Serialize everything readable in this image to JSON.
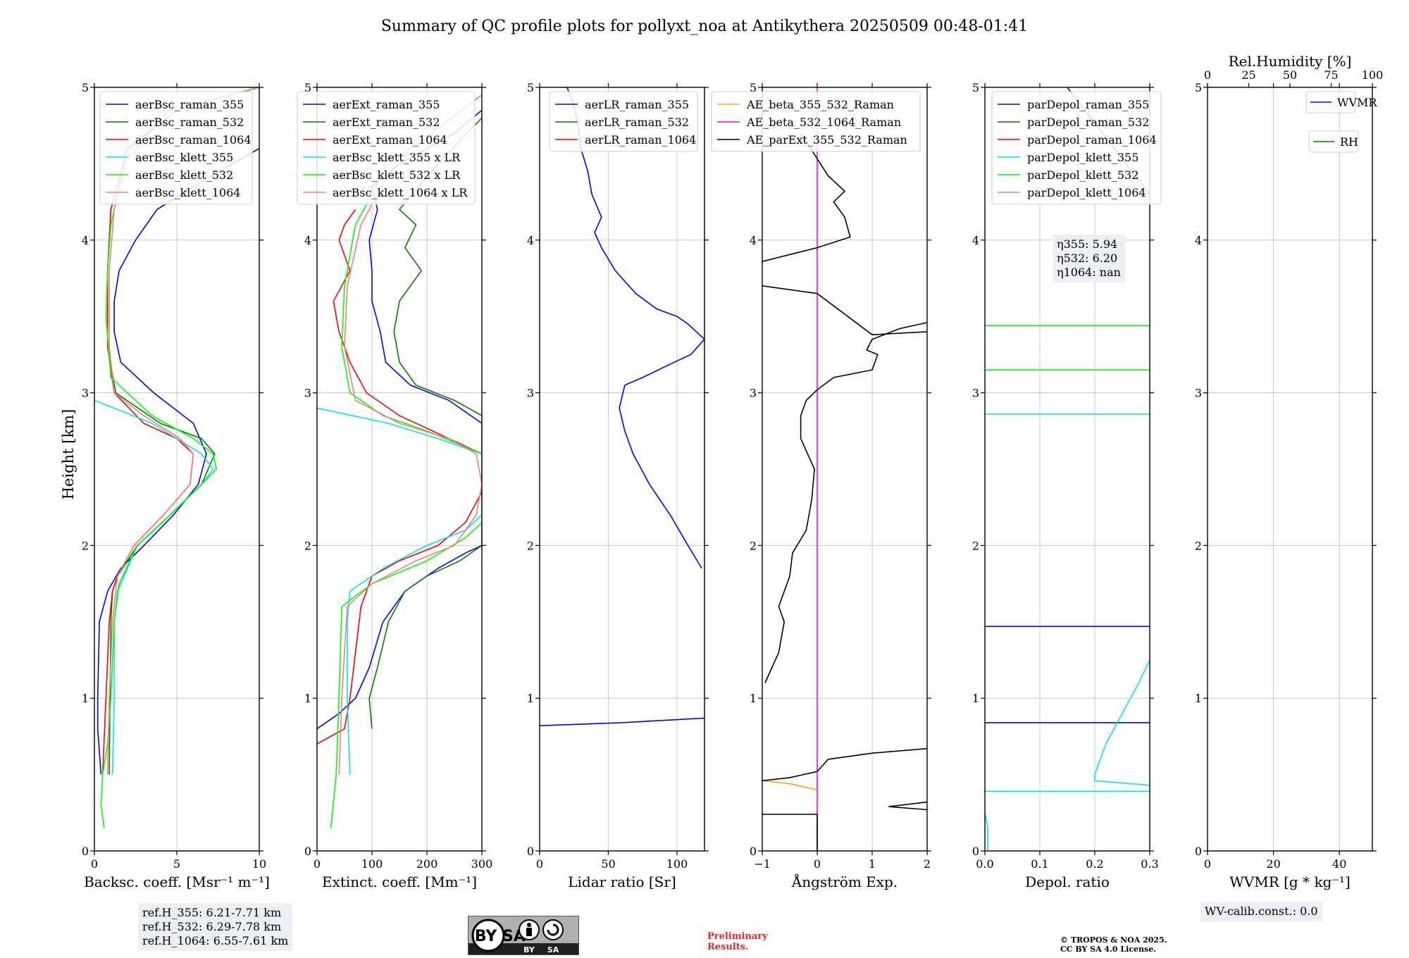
{
  "figure": {
    "title": "Summary of QC profile plots for pollyxt_noa at Antikythera 20250509 00:48-01:41",
    "y_label": "Height [km]",
    "ref_heights": [
      "ref.H_355: 6.21-7.71 km",
      "ref.H_532: 6.29-7.78 km",
      "ref.H_1064: 6.55-7.61 km"
    ],
    "eta": [
      "η355: 5.94",
      "η532: 6.20",
      "η1064: nan"
    ],
    "wv_calib": "WV-calib.const.: 0.0",
    "cc_license_badge": {
      "text": "cc BY SA"
    },
    "preliminary": [
      "Preliminary",
      "Results."
    ],
    "copyright": [
      "© TROPOS & NOA 2025.",
      "CC BY SA 4.0 License."
    ]
  },
  "chart_data": [
    {
      "type": "line",
      "xlabel": "Backsc. coeff. [Msr⁻¹ m⁻¹]",
      "ylabel": "Height [km]",
      "xlim": [
        0,
        10
      ],
      "ylim": [
        0,
        5
      ],
      "xticks": [
        "0",
        "5",
        "10"
      ],
      "yticks": [
        "0",
        "1",
        "2",
        "3",
        "4",
        "5"
      ],
      "legend_position": "top-right",
      "series": [
        {
          "name": "aerBsc_raman_355",
          "color": "#0000ff",
          "x": [
            0.4,
            0.2,
            0.2,
            0.3,
            0.8,
            1.6,
            3.0,
            4.8,
            6.3,
            6.8,
            6.0,
            3.6,
            1.6,
            1.2,
            1.2,
            1.5,
            2.5,
            3.8,
            6.0,
            10.0
          ],
          "y": [
            0.5,
            0.8,
            1.0,
            1.5,
            1.7,
            1.85,
            2.0,
            2.2,
            2.4,
            2.6,
            2.8,
            3.0,
            3.2,
            3.4,
            3.6,
            3.8,
            4.0,
            4.2,
            4.35,
            4.6
          ]
        },
        {
          "name": "aerBsc_raman_532",
          "color": "#008000",
          "x": [
            0.9,
            0.95,
            1.0,
            1.1,
            1.4,
            2.6,
            4.6,
            6.5,
            7.3,
            6.5,
            4.0,
            1.3,
            0.8,
            0.8,
            1.0,
            2.0,
            5.0,
            10.0
          ],
          "y": [
            0.5,
            1.0,
            1.5,
            1.7,
            1.8,
            2.0,
            2.2,
            2.4,
            2.6,
            2.7,
            2.8,
            3.0,
            3.3,
            3.8,
            4.2,
            4.6,
            4.85,
            5.0
          ]
        },
        {
          "name": "aerBsc_raman_1064",
          "color": "#ff0000",
          "x": [
            0.5,
            0.7,
            0.9,
            1.1,
            1.4,
            2.4,
            4.2,
            5.8,
            6.0,
            5.0,
            3.0,
            1.2,
            0.8,
            0.8,
            1.0,
            2.0,
            5.0,
            10.0
          ],
          "y": [
            0.5,
            1.0,
            1.5,
            1.7,
            1.8,
            2.0,
            2.2,
            2.4,
            2.6,
            2.7,
            2.8,
            3.0,
            3.3,
            3.8,
            4.2,
            4.6,
            4.85,
            5.0
          ]
        },
        {
          "name": "aerBsc_klett_355",
          "color": "#00e5e5",
          "x": [
            1.1,
            1.2,
            1.2,
            1.4,
            2.6,
            4.6,
            6.5,
            7.2,
            6.5,
            3.5,
            0.0
          ],
          "y": [
            0.5,
            1.0,
            1.5,
            1.7,
            2.0,
            2.2,
            2.4,
            2.5,
            2.6,
            2.8,
            2.95
          ]
        },
        {
          "name": "aerBsc_klett_532",
          "color": "#00ff00",
          "x": [
            0.6,
            0.4,
            0.5,
            0.8,
            1.0,
            1.2,
            1.5,
            2.6,
            4.6,
            6.5,
            7.4,
            7.2,
            6.0,
            3.5,
            1.0,
            0.7,
            0.8,
            1.0,
            1.8,
            4.5,
            10.0
          ],
          "y": [
            0.15,
            0.3,
            0.5,
            0.7,
            1.0,
            1.5,
            1.75,
            2.0,
            2.2,
            2.4,
            2.5,
            2.6,
            2.7,
            2.85,
            3.1,
            3.5,
            3.8,
            4.1,
            4.5,
            4.85,
            5.0
          ]
        },
        {
          "name": "aerBsc_klett_1064",
          "color": "#f08080",
          "x": [
            0.8,
            0.9,
            1.1,
            1.4,
            2.4,
            4.2,
            5.8,
            6.0,
            5.2,
            3.0,
            1.2,
            0.9,
            0.9,
            1.2,
            2.2,
            5.0,
            10.0
          ],
          "y": [
            0.5,
            1.0,
            1.5,
            1.8,
            2.0,
            2.2,
            2.4,
            2.6,
            2.7,
            2.85,
            3.0,
            3.3,
            3.8,
            4.2,
            4.6,
            4.85,
            5.0
          ]
        }
      ]
    },
    {
      "type": "line",
      "xlabel": "Extinct. coeff. [Mm⁻¹]",
      "xlim": [
        0,
        300
      ],
      "ylim": [
        0,
        5
      ],
      "xticks": [
        "0",
        "100",
        "200",
        "300"
      ],
      "yticks": [
        "0",
        "1",
        "2",
        "3",
        "4",
        "5"
      ],
      "legend_position": "top-right",
      "series": [
        {
          "name": "aerExt_raman_355",
          "color": "#0000ff",
          "x": [
            0,
            40,
            70,
            95,
            120,
            160,
            220,
            270,
            300,
            300,
            240,
            170,
            125,
            115,
            100,
            100,
            95,
            110,
            100,
            150,
            250,
            300
          ],
          "y": [
            0.8,
            0.9,
            1.0,
            1.2,
            1.5,
            1.7,
            1.85,
            1.95,
            2.0,
            2.8,
            2.95,
            3.05,
            3.2,
            3.4,
            3.6,
            3.8,
            4.0,
            4.2,
            4.35,
            4.5,
            4.7,
            4.85
          ]
        },
        {
          "name": "aerExt_raman_532",
          "color": "#008000",
          "x": [
            100,
            95,
            110,
            130,
            160,
            200,
            260,
            300,
            300,
            250,
            180,
            150,
            140,
            150,
            170,
            190,
            160,
            180,
            150,
            220,
            300
          ],
          "y": [
            0.8,
            1.0,
            1.2,
            1.5,
            1.7,
            1.8,
            1.9,
            2.0,
            2.85,
            2.95,
            3.05,
            3.2,
            3.4,
            3.6,
            3.7,
            3.8,
            3.95,
            4.1,
            4.2,
            4.5,
            4.8
          ]
        },
        {
          "name": "aerExt_raman_1064",
          "color": "#ff0000",
          "x": [
            0,
            50,
            60,
            70,
            80,
            100,
            150,
            220,
            270,
            300,
            300,
            240,
            150,
            90,
            60,
            40,
            30,
            60,
            40,
            50,
            70
          ],
          "y": [
            0.7,
            0.8,
            1.0,
            1.3,
            1.6,
            1.8,
            1.9,
            2.0,
            2.15,
            2.35,
            2.6,
            2.7,
            2.85,
            3.0,
            3.2,
            3.4,
            3.6,
            3.8,
            4.0,
            4.1,
            4.2
          ]
        },
        {
          "name": "aerBsc_klett_355 x LR",
          "color": "#00e5e5",
          "x": [
            60,
            55,
            55,
            60,
            120,
            200,
            270,
            300,
            300,
            220,
            130,
            0
          ],
          "y": [
            0.5,
            1.0,
            1.5,
            1.7,
            1.85,
            2.0,
            2.1,
            2.2,
            2.6,
            2.7,
            2.8,
            2.9
          ]
        },
        {
          "name": "aerBsc_klett_532 x LR",
          "color": "#00ff00",
          "x": [
            25,
            35,
            40,
            45,
            100,
            200,
            270,
            300,
            300,
            200,
            120,
            60,
            45,
            50,
            70,
            130,
            300
          ],
          "y": [
            0.15,
            0.5,
            1.0,
            1.6,
            1.75,
            1.9,
            2.05,
            2.15,
            2.6,
            2.75,
            2.85,
            3.0,
            3.3,
            3.7,
            4.1,
            4.5,
            4.95
          ]
        },
        {
          "name": "aerBsc_klett_1064 x LR",
          "color": "#f08080",
          "x": [
            40,
            45,
            55,
            100,
            180,
            250,
            290,
            300,
            290,
            240,
            150,
            70,
            50,
            55,
            80,
            140,
            300
          ],
          "y": [
            0.5,
            1.0,
            1.6,
            1.75,
            1.9,
            2.0,
            2.2,
            2.4,
            2.6,
            2.7,
            2.8,
            2.95,
            3.3,
            3.7,
            4.1,
            4.5,
            4.95
          ]
        }
      ]
    },
    {
      "type": "line",
      "xlabel": "Lidar ratio [Sr]",
      "xlim": [
        0,
        120
      ],
      "ylim": [
        0,
        5
      ],
      "xticks": [
        "0",
        "50",
        "100"
      ],
      "yticks": [
        "0",
        "1",
        "2",
        "3",
        "4",
        "5"
      ],
      "legend_position": "top-right",
      "series": [
        {
          "name": "aerLR_raman_355",
          "color": "#0000ff",
          "x": [
            0,
            60,
            120,
            null,
            118,
            108,
            95,
            80,
            68,
            62,
            58,
            62,
            75,
            98,
            110,
            120,
            108,
            100,
            85,
            70,
            55,
            45,
            40,
            45,
            38,
            35,
            30,
            28,
            25,
            20
          ],
          "y": [
            0.82,
            0.84,
            0.87,
            null,
            1.85,
            2.0,
            2.2,
            2.4,
            2.6,
            2.75,
            2.9,
            3.05,
            3.1,
            3.2,
            3.25,
            3.35,
            3.45,
            3.5,
            3.55,
            3.65,
            3.8,
            3.95,
            4.05,
            4.15,
            4.3,
            4.45,
            4.6,
            4.75,
            4.88,
            5.0
          ]
        },
        {
          "name": "aerLR_raman_532",
          "color": "#008000",
          "x": [],
          "y": []
        },
        {
          "name": "aerLR_raman_1064",
          "color": "#ff0000",
          "x": [],
          "y": []
        }
      ]
    },
    {
      "type": "line",
      "xlabel": "Ångström Exp.",
      "xlim": [
        -1,
        2
      ],
      "ylim": [
        0,
        5
      ],
      "xticks": [
        "−1",
        "0",
        "1",
        "2"
      ],
      "yticks": [
        "0",
        "1",
        "2",
        "3",
        "4",
        "5"
      ],
      "legend_position": "top-right",
      "series": [
        {
          "name": "AE_beta_355_532_Raman",
          "color": "#ffa500",
          "x": [
            -1,
            -0.5,
            0
          ],
          "y": [
            0.46,
            0.44,
            0.4
          ]
        },
        {
          "name": "AE_beta_532_1064_Raman",
          "color": "#ff00ff",
          "x": [
            0,
            0
          ],
          "y": [
            0,
            5
          ]
        },
        {
          "name": "AE_parExt_355_532_Raman",
          "color": "#000000",
          "x": [
            -1,
            0,
            0,
            null,
            -1,
            -0.5,
            0,
            0.2,
            1.0,
            2.0,
            null,
            2.0,
            1.3,
            2.0,
            null,
            -0.95,
            -0.7,
            -0.6,
            -0.7,
            -0.5,
            -0.45,
            -0.2,
            -0.1,
            -0.05,
            -0.3,
            -0.3,
            -0.2,
            0,
            0.3,
            1.0,
            1.1,
            0.9,
            1.0,
            1.5,
            2.0,
            null,
            2.0,
            1.0,
            0.0,
            -1.0,
            null,
            -1.0,
            0.0,
            0.6,
            0.5,
            0.3,
            0.5,
            0.2,
            -0.3
          ],
          "y": [
            0.24,
            0.24,
            0.0,
            null,
            0.46,
            0.48,
            0.52,
            0.6,
            0.64,
            0.67,
            null,
            0.27,
            0.29,
            0.32,
            null,
            1.1,
            1.3,
            1.5,
            1.6,
            1.8,
            1.95,
            2.1,
            2.3,
            2.5,
            2.7,
            2.85,
            2.95,
            3.02,
            3.1,
            3.15,
            3.25,
            3.28,
            3.35,
            3.42,
            3.46,
            null,
            3.4,
            3.38,
            3.65,
            3.7,
            null,
            3.86,
            3.95,
            4.02,
            4.15,
            4.25,
            4.32,
            4.42,
            4.7
          ]
        }
      ]
    },
    {
      "type": "line",
      "xlabel": "Depol. ratio",
      "xlim": [
        0,
        0.3
      ],
      "ylim": [
        0,
        5
      ],
      "xticks": [
        "0.0",
        "0.1",
        "0.2",
        "0.3"
      ],
      "yticks": [
        "0",
        "1",
        "2",
        "3",
        "4",
        "5"
      ],
      "legend_position": "top-left",
      "series": [
        {
          "name": "parDepol_raman_355",
          "color": "#0000ff",
          "x": [
            0,
            0.3,
            null,
            0,
            0.3,
            null,
            0.15,
            0.3
          ],
          "y": [
            0.84,
            0.84,
            null,
            1.47,
            1.47,
            null,
            5.0,
            4.3
          ]
        },
        {
          "name": "parDepol_raman_532",
          "color": "#008000",
          "x": [],
          "y": []
        },
        {
          "name": "parDepol_raman_1064",
          "color": "#ff0000",
          "x": [],
          "y": []
        },
        {
          "name": "parDepol_klett_355",
          "color": "#00e5e5",
          "x": [
            0.0,
            0.005,
            0.005,
            null,
            0,
            0.3,
            null,
            0.3,
            0.2,
            0.2,
            0.22,
            0.25,
            0.28,
            0.3,
            null,
            0,
            0.3
          ],
          "y": [
            0.25,
            0.15,
            0.0,
            null,
            0.39,
            0.39,
            null,
            0.43,
            0.46,
            0.5,
            0.7,
            0.9,
            1.1,
            1.25,
            null,
            2.86,
            2.86
          ]
        },
        {
          "name": "parDepol_klett_532",
          "color": "#00ff00",
          "x": [
            0,
            0.3,
            null,
            0,
            0.3
          ],
          "y": [
            3.15,
            3.15,
            null,
            3.44,
            3.44
          ]
        },
        {
          "name": "parDepol_klett_1064",
          "color": "#f08080",
          "x": [],
          "y": []
        }
      ]
    },
    {
      "type": "line",
      "xlabel": "WVMR [g * kg⁻¹]",
      "xlim": [
        0,
        50
      ],
      "ylim": [
        0,
        5
      ],
      "xticks": [
        "0",
        "20",
        "40"
      ],
      "yticks": [
        "0",
        "1",
        "2",
        "3",
        "4",
        "5"
      ],
      "top_axis": {
        "label": "Rel.Humidity [%]",
        "xlim": [
          0,
          100
        ],
        "xticks": [
          "0",
          "25",
          "50",
          "75",
          "100"
        ]
      },
      "legend_position": "top-right",
      "series": [
        {
          "name": "WVMR",
          "color": "#0000ff",
          "x": [],
          "y": []
        },
        {
          "name": "RH",
          "color": "#008000",
          "x": [],
          "y": []
        }
      ]
    }
  ]
}
